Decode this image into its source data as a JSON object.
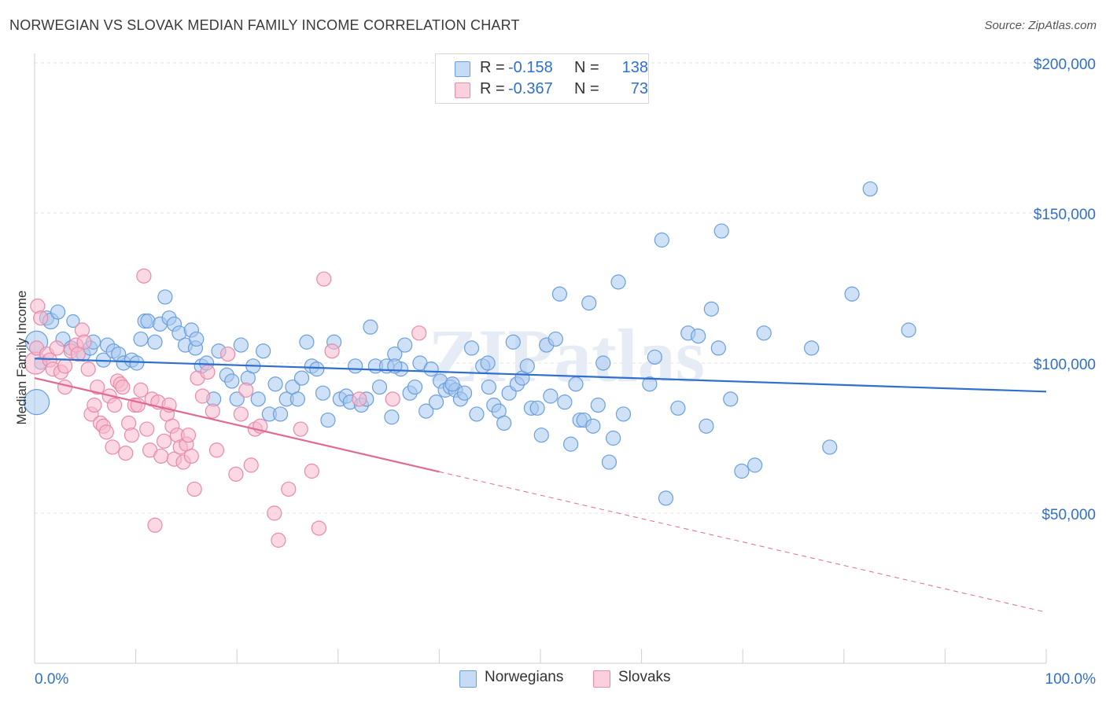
{
  "title": "NORWEGIAN VS SLOVAK MEDIAN FAMILY INCOME CORRELATION CHART",
  "source": "Source: ZipAtlas.com",
  "watermark": "ZIPatlas",
  "legend_top": {
    "rows": [
      {
        "r_label": "R =",
        "r_value": "-0.158",
        "n_label": "N =",
        "n_value": "138",
        "color": "#a8c8f0"
      },
      {
        "r_label": "R =",
        "r_value": "-0.367",
        "n_label": "N =",
        "n_value": "73",
        "color": "#f7b8cc"
      }
    ]
  },
  "legend_bottom": [
    {
      "label": "Norwegians",
      "color": "#a8c8f0"
    },
    {
      "label": "Slovaks",
      "color": "#f7b8cc"
    }
  ],
  "chart_data": {
    "type": "scatter",
    "title": "NORWEGIAN VS SLOVAK MEDIAN FAMILY INCOME CORRELATION CHART",
    "xlabel": "",
    "ylabel": "Median Family Income",
    "xlim": [
      0,
      100
    ],
    "ylim": [
      0,
      205000
    ],
    "x_tick_labels": [
      "0.0%",
      "100.0%"
    ],
    "y_ticks": [
      {
        "value": 50000,
        "label": "$50,000"
      },
      {
        "value": 100000,
        "label": "$100,000"
      },
      {
        "value": 150000,
        "label": "$150,000"
      },
      {
        "value": 200000,
        "label": "$200,000"
      }
    ],
    "grid": true,
    "legend_position": "top-center",
    "colors": {
      "norwegians_fill": "#a8c8f0",
      "norwegians_stroke": "#6a9fdc",
      "norwegians_line": "#2f6fcf",
      "slovaks_fill": "#f7b8cc",
      "slovaks_stroke": "#e88aa8",
      "slovaks_line": "#e06a92",
      "axis_text": "#2f6fcf",
      "grid": "#e2e2e2"
    },
    "series": [
      {
        "name": "Norwegians",
        "trend": {
          "x": [
            0,
            100
          ],
          "y": [
            101500,
            90500
          ],
          "dashed_from": null
        },
        "points": [
          [
            0.2,
            107000,
            14
          ],
          [
            0.2,
            87000,
            16
          ],
          [
            0.6,
            100000,
            8
          ],
          [
            1.2,
            115000,
            9
          ],
          [
            1.6,
            114000,
            10
          ],
          [
            2.3,
            117000,
            9
          ],
          [
            2.8,
            108000,
            9
          ],
          [
            3.6,
            105000,
            9
          ],
          [
            3.8,
            114000,
            8
          ],
          [
            4.8,
            103000,
            9
          ],
          [
            5.5,
            105000,
            9
          ],
          [
            5.8,
            107000,
            9
          ],
          [
            6.8,
            101000,
            9
          ],
          [
            7.2,
            106000,
            9
          ],
          [
            7.8,
            104000,
            9
          ],
          [
            8.3,
            103000,
            9
          ],
          [
            8.8,
            100000,
            9
          ],
          [
            9.6,
            101000,
            9
          ],
          [
            10.1,
            100000,
            9
          ],
          [
            10.5,
            108000,
            9
          ],
          [
            10.9,
            114000,
            9
          ],
          [
            11.2,
            114000,
            9
          ],
          [
            11.9,
            107000,
            9
          ],
          [
            12.4,
            113000,
            9
          ],
          [
            12.9,
            122000,
            9
          ],
          [
            13.3,
            115000,
            9
          ],
          [
            13.8,
            113000,
            9
          ],
          [
            14.3,
            110000,
            9
          ],
          [
            14.9,
            106000,
            9
          ],
          [
            15.5,
            111000,
            9
          ],
          [
            15.9,
            105000,
            9
          ],
          [
            16.5,
            99000,
            9
          ],
          [
            17.0,
            100000,
            9
          ],
          [
            17.7,
            88000,
            9
          ],
          [
            18.2,
            104000,
            9
          ],
          [
            19.0,
            96000,
            9
          ],
          [
            19.5,
            94000,
            9
          ],
          [
            20.0,
            88000,
            9
          ],
          [
            20.4,
            106000,
            9
          ],
          [
            21.1,
            95000,
            9
          ],
          [
            21.6,
            99000,
            9
          ],
          [
            22.1,
            88000,
            9
          ],
          [
            22.6,
            104000,
            9
          ],
          [
            23.2,
            83000,
            9
          ],
          [
            23.8,
            93000,
            9
          ],
          [
            24.3,
            83000,
            9
          ],
          [
            24.9,
            88000,
            9
          ],
          [
            25.5,
            92000,
            9
          ],
          [
            26.0,
            88000,
            9
          ],
          [
            26.4,
            95000,
            9
          ],
          [
            26.9,
            107000,
            9
          ],
          [
            27.4,
            99000,
            9
          ],
          [
            27.9,
            98000,
            9
          ],
          [
            28.5,
            90000,
            9
          ],
          [
            29.0,
            81000,
            9
          ],
          [
            29.6,
            107000,
            9
          ],
          [
            30.2,
            88000,
            9
          ],
          [
            30.8,
            89000,
            9
          ],
          [
            31.2,
            87000,
            9
          ],
          [
            31.7,
            99000,
            9
          ],
          [
            32.3,
            86000,
            9
          ],
          [
            32.8,
            88000,
            9
          ],
          [
            33.2,
            112000,
            9
          ],
          [
            33.7,
            99000,
            9
          ],
          [
            34.1,
            92000,
            9
          ],
          [
            34.8,
            99000,
            9
          ],
          [
            35.3,
            82000,
            9
          ],
          [
            35.6,
            103000,
            9
          ],
          [
            36.2,
            98000,
            9
          ],
          [
            36.6,
            106000,
            9
          ],
          [
            37.1,
            90000,
            9
          ],
          [
            37.6,
            92000,
            9
          ],
          [
            38.1,
            100000,
            9
          ],
          [
            38.7,
            84000,
            9
          ],
          [
            39.2,
            98000,
            9
          ],
          [
            39.7,
            87000,
            9
          ],
          [
            40.1,
            94000,
            9
          ],
          [
            40.6,
            91000,
            9
          ],
          [
            41.1,
            92000,
            9
          ],
          [
            41.6,
            91000,
            9
          ],
          [
            42.1,
            88000,
            9
          ],
          [
            42.5,
            90000,
            9
          ],
          [
            43.2,
            105000,
            9
          ],
          [
            43.7,
            83000,
            9
          ],
          [
            44.3,
            99000,
            9
          ],
          [
            44.8,
            100000,
            9
          ],
          [
            45.4,
            86000,
            9
          ],
          [
            45.9,
            84000,
            9
          ],
          [
            46.4,
            80000,
            9
          ],
          [
            46.9,
            90000,
            9
          ],
          [
            47.3,
            107000,
            9
          ],
          [
            47.7,
            93000,
            9
          ],
          [
            48.2,
            95000,
            9
          ],
          [
            48.7,
            99000,
            9
          ],
          [
            49.1,
            85000,
            9
          ],
          [
            49.7,
            85000,
            9
          ],
          [
            50.1,
            76000,
            9
          ],
          [
            50.6,
            106000,
            9
          ],
          [
            51.0,
            89000,
            9
          ],
          [
            51.5,
            108000,
            9
          ],
          [
            51.9,
            123000,
            9
          ],
          [
            52.4,
            87000,
            9
          ],
          [
            53.0,
            73000,
            9
          ],
          [
            53.5,
            93000,
            9
          ],
          [
            53.9,
            81000,
            9
          ],
          [
            54.3,
            81000,
            9
          ],
          [
            54.8,
            120000,
            9
          ],
          [
            55.2,
            79000,
            9
          ],
          [
            55.7,
            86000,
            9
          ],
          [
            56.2,
            100000,
            9
          ],
          [
            56.8,
            67000,
            9
          ],
          [
            57.2,
            75000,
            9
          ],
          [
            57.7,
            127000,
            9
          ],
          [
            58.2,
            83000,
            9
          ],
          [
            60.8,
            93000,
            9
          ],
          [
            61.3,
            102000,
            9
          ],
          [
            62.0,
            141000,
            9
          ],
          [
            62.4,
            55000,
            9
          ],
          [
            63.6,
            85000,
            9
          ],
          [
            64.6,
            110000,
            9
          ],
          [
            65.6,
            109000,
            9
          ],
          [
            66.4,
            79000,
            9
          ],
          [
            66.9,
            118000,
            9
          ],
          [
            67.6,
            105000,
            9
          ],
          [
            67.9,
            144000,
            9
          ],
          [
            68.8,
            88000,
            9
          ],
          [
            69.9,
            64000,
            9
          ],
          [
            71.2,
            66000,
            9
          ],
          [
            72.1,
            110000,
            9
          ],
          [
            76.8,
            105000,
            9
          ],
          [
            78.6,
            72000,
            9
          ],
          [
            80.8,
            123000,
            9
          ],
          [
            82.6,
            158000,
            9
          ],
          [
            86.4,
            111000,
            9
          ],
          [
            35.6,
            99000,
            9
          ],
          [
            41.3,
            93000,
            9
          ],
          [
            44.9,
            92000,
            9
          ],
          [
            16.0,
            108000,
            9
          ]
        ]
      },
      {
        "name": "Slovaks",
        "trend": {
          "x": [
            0,
            100
          ],
          "y": [
            95000,
            17000
          ],
          "dashed_from": 40
        },
        "points": [
          [
            0.1,
            100000,
            14
          ],
          [
            0.2,
            105000,
            9
          ],
          [
            0.3,
            119000,
            9
          ],
          [
            0.6,
            115000,
            9
          ],
          [
            1.2,
            103000,
            9
          ],
          [
            1.5,
            101000,
            9
          ],
          [
            1.8,
            98000,
            9
          ],
          [
            2.2,
            105000,
            9
          ],
          [
            2.6,
            97000,
            9
          ],
          [
            3.0,
            99000,
            9
          ],
          [
            3.0,
            92000,
            9
          ],
          [
            3.6,
            104000,
            9
          ],
          [
            4.1,
            106000,
            9
          ],
          [
            4.3,
            103000,
            9
          ],
          [
            4.7,
            111000,
            9
          ],
          [
            4.9,
            107000,
            9
          ],
          [
            5.3,
            98000,
            9
          ],
          [
            5.6,
            83000,
            9
          ],
          [
            5.9,
            86000,
            9
          ],
          [
            6.2,
            92000,
            9
          ],
          [
            6.5,
            80000,
            9
          ],
          [
            6.8,
            79000,
            9
          ],
          [
            7.1,
            77000,
            9
          ],
          [
            7.4,
            89000,
            9
          ],
          [
            7.7,
            72000,
            9
          ],
          [
            7.9,
            86000,
            9
          ],
          [
            8.2,
            94000,
            9
          ],
          [
            8.5,
            93000,
            9
          ],
          [
            8.7,
            92000,
            9
          ],
          [
            9.0,
            70000,
            9
          ],
          [
            9.3,
            80000,
            9
          ],
          [
            9.6,
            76000,
            9
          ],
          [
            9.9,
            86000,
            9
          ],
          [
            10.2,
            86000,
            9
          ],
          [
            10.5,
            91000,
            9
          ],
          [
            10.8,
            129000,
            9
          ],
          [
            11.1,
            78000,
            9
          ],
          [
            11.4,
            71000,
            9
          ],
          [
            11.6,
            88000,
            9
          ],
          [
            11.9,
            46000,
            9
          ],
          [
            12.2,
            87000,
            9
          ],
          [
            12.5,
            69000,
            9
          ],
          [
            12.8,
            74000,
            9
          ],
          [
            13.1,
            83000,
            9
          ],
          [
            13.3,
            86000,
            9
          ],
          [
            13.6,
            79000,
            9
          ],
          [
            13.8,
            68000,
            9
          ],
          [
            14.1,
            76000,
            9
          ],
          [
            14.4,
            72000,
            9
          ],
          [
            14.7,
            67000,
            9
          ],
          [
            15.0,
            73000,
            9
          ],
          [
            15.2,
            76000,
            9
          ],
          [
            15.5,
            69000,
            9
          ],
          [
            15.8,
            58000,
            9
          ],
          [
            16.1,
            95000,
            9
          ],
          [
            16.6,
            89000,
            9
          ],
          [
            17.1,
            97000,
            9
          ],
          [
            17.6,
            84000,
            9
          ],
          [
            18.0,
            71000,
            9
          ],
          [
            19.1,
            103000,
            9
          ],
          [
            19.9,
            63000,
            9
          ],
          [
            20.4,
            83000,
            9
          ],
          [
            20.9,
            91000,
            9
          ],
          [
            21.4,
            66000,
            9
          ],
          [
            21.8,
            78000,
            9
          ],
          [
            22.3,
            79000,
            9
          ],
          [
            23.7,
            50000,
            9
          ],
          [
            24.1,
            41000,
            9
          ],
          [
            25.1,
            58000,
            9
          ],
          [
            26.3,
            78000,
            9
          ],
          [
            27.4,
            64000,
            9
          ],
          [
            28.1,
            45000,
            9
          ],
          [
            28.6,
            128000,
            9
          ],
          [
            29.4,
            104000,
            9
          ],
          [
            32.1,
            88000,
            9
          ],
          [
            35.4,
            88000,
            9
          ],
          [
            38.0,
            110000,
            9
          ]
        ]
      }
    ]
  }
}
